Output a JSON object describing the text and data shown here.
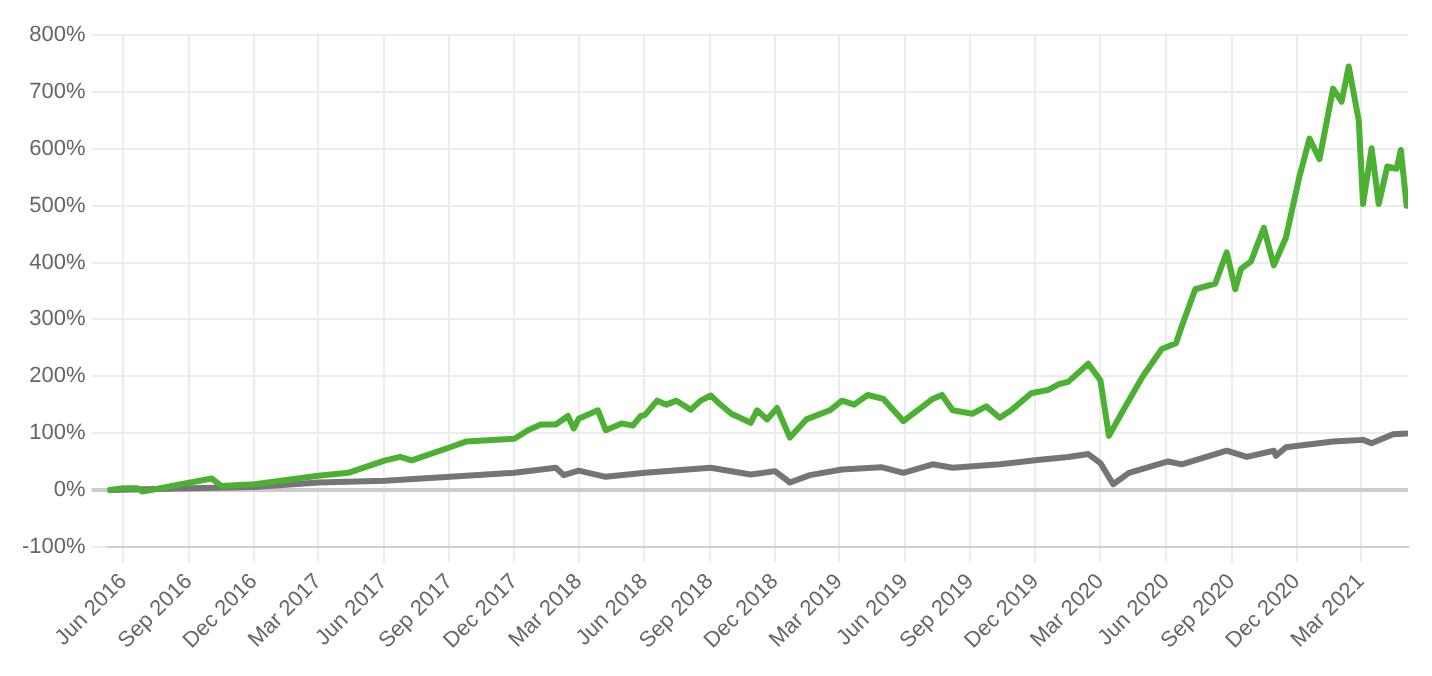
{
  "chart_data": {
    "type": "line",
    "xlim": [
      "2016-05-10",
      "2021-05-06"
    ],
    "xticks": [
      {
        "value": "2016-06",
        "label": "Jun 2016"
      },
      {
        "value": "2016-09",
        "label": "Sep 2016"
      },
      {
        "value": "2016-12",
        "label": "Dec 2016"
      },
      {
        "value": "2017-03",
        "label": "Mar 2017"
      },
      {
        "value": "2017-06",
        "label": "Jun 2017"
      },
      {
        "value": "2017-09",
        "label": "Sep 2017"
      },
      {
        "value": "2017-12",
        "label": "Dec 2017"
      },
      {
        "value": "2018-03",
        "label": "Mar 2018"
      },
      {
        "value": "2018-06",
        "label": "Jun 2018"
      },
      {
        "value": "2018-09",
        "label": "Sep 2018"
      },
      {
        "value": "2018-12",
        "label": "Dec 2018"
      },
      {
        "value": "2019-03",
        "label": "Mar 2019"
      },
      {
        "value": "2019-06",
        "label": "Jun 2019"
      },
      {
        "value": "2019-09",
        "label": "Sep 2019"
      },
      {
        "value": "2019-12",
        "label": "Dec 2019"
      },
      {
        "value": "2020-03",
        "label": "Mar 2020"
      },
      {
        "value": "2020-06",
        "label": "Jun 2020"
      },
      {
        "value": "2020-09",
        "label": "Sep 2020"
      },
      {
        "value": "2020-12",
        "label": "Dec 2020"
      },
      {
        "value": "2021-03",
        "label": "Mar 2021"
      }
    ],
    "ylim": [
      -100,
      800
    ],
    "yticks": [
      {
        "value": -100,
        "label": "-100%"
      },
      {
        "value": 0,
        "label": "0%"
      },
      {
        "value": 100,
        "label": "100%"
      },
      {
        "value": 200,
        "label": "200%"
      },
      {
        "value": 300,
        "label": "300%"
      },
      {
        "value": 400,
        "label": "400%"
      },
      {
        "value": 500,
        "label": "500%"
      },
      {
        "value": 600,
        "label": "600%"
      },
      {
        "value": 700,
        "label": "700%"
      },
      {
        "value": 800,
        "label": "800%"
      }
    ],
    "grid": true,
    "legend": false,
    "marker": "none",
    "line_style": "solid",
    "series": [
      {
        "color": "#4cb033",
        "x": [
          "2016-05-13",
          "2016-06-01",
          "2016-06-20",
          "2016-06-28",
          "2016-09-03",
          "2016-10-03",
          "2016-10-16",
          "2016-12-02",
          "2017-03-01",
          "2017-04-12",
          "2017-06-03",
          "2017-06-24",
          "2017-07-10",
          "2017-09-02",
          "2017-09-24",
          "2017-12-01",
          "2017-12-20",
          "2018-01-07",
          "2018-01-28",
          "2018-02-14",
          "2018-02-22",
          "2018-03-01",
          "2018-03-28",
          "2018-04-08",
          "2018-04-30",
          "2018-05-16",
          "2018-05-27",
          "2018-06-02",
          "2018-06-19",
          "2018-07-02",
          "2018-07-16",
          "2018-08-05",
          "2018-08-19",
          "2018-09-02",
          "2018-09-13",
          "2018-10-01",
          "2018-10-28",
          "2018-11-06",
          "2018-11-20",
          "2018-12-04",
          "2018-12-22",
          "2019-01-14",
          "2019-02-16",
          "2019-03-05",
          "2019-03-22",
          "2019-04-10",
          "2019-05-02",
          "2019-05-30",
          "2019-06-23",
          "2019-07-10",
          "2019-07-23",
          "2019-08-07",
          "2019-09-04",
          "2019-09-23",
          "2019-10-12",
          "2019-10-28",
          "2019-11-25",
          "2019-12-19",
          "2020-01-03",
          "2020-01-16",
          "2020-02-13",
          "2020-03-01",
          "2020-03-13",
          "2020-04-02",
          "2020-04-29",
          "2020-05-26",
          "2020-06-15",
          "2020-06-23",
          "2020-07-12",
          "2020-08-09",
          "2020-08-25",
          "2020-09-06",
          "2020-09-14",
          "2020-09-28",
          "2020-10-16",
          "2020-10-30",
          "2020-11-16",
          "2020-12-05",
          "2020-12-19",
          "2021-01-02",
          "2021-01-21",
          "2021-02-02",
          "2021-02-12",
          "2021-02-26",
          "2021-03-04",
          "2021-03-16",
          "2021-03-26",
          "2021-04-07",
          "2021-04-20",
          "2021-04-26",
          "2021-05-04"
        ],
        "values": [
          0,
          3,
          3,
          -3,
          13,
          20,
          7,
          10,
          25,
          30,
          52,
          58,
          52,
          75,
          85,
          90,
          105,
          115,
          115,
          130,
          108,
          125,
          140,
          105,
          117,
          113,
          130,
          132,
          157,
          150,
          157,
          141,
          157,
          166,
          153,
          134,
          118,
          140,
          124,
          144,
          92,
          124,
          140,
          157,
          150,
          167,
          160,
          121,
          144,
          160,
          167,
          140,
          134,
          147,
          127,
          140,
          170,
          176,
          186,
          190,
          222,
          193,
          95,
          140,
          199,
          248,
          258,
          288,
          353,
          363,
          418,
          353,
          389,
          402,
          461,
          395,
          444,
          552,
          618,
          582,
          706,
          683,
          745,
          650,
          503,
          601,
          503,
          569,
          565,
          598,
          500
        ]
      },
      {
        "color": "#757575",
        "x": [
          "2016-05-13",
          "2016-09-03",
          "2016-12-02",
          "2017-03-01",
          "2017-06-03",
          "2017-09-02",
          "2017-12-01",
          "2018-01-28",
          "2018-02-08",
          "2018-03-01",
          "2018-04-08",
          "2018-06-02",
          "2018-09-02",
          "2018-10-28",
          "2018-12-01",
          "2018-12-22",
          "2019-01-19",
          "2019-03-05",
          "2019-04-29",
          "2019-05-30",
          "2019-07-10",
          "2019-08-07",
          "2019-10-12",
          "2019-11-30",
          "2020-01-16",
          "2020-02-13",
          "2020-03-01",
          "2020-03-19",
          "2020-04-10",
          "2020-06-04",
          "2020-06-23",
          "2020-08-25",
          "2020-09-22",
          "2020-10-30",
          "2020-11-02",
          "2020-11-16",
          "2021-01-21",
          "2021-03-04",
          "2021-03-16",
          "2021-04-15",
          "2021-05-04"
        ],
        "values": [
          0,
          3,
          5,
          13,
          16,
          23,
          30,
          39,
          26,
          34,
          23,
          30,
          39,
          27,
          33,
          13,
          26,
          36,
          40,
          30,
          45,
          39,
          45,
          52,
          58,
          63,
          47,
          10,
          30,
          50,
          45,
          69,
          58,
          69,
          60,
          75,
          85,
          88,
          82,
          98,
          99
        ]
      }
    ]
  }
}
